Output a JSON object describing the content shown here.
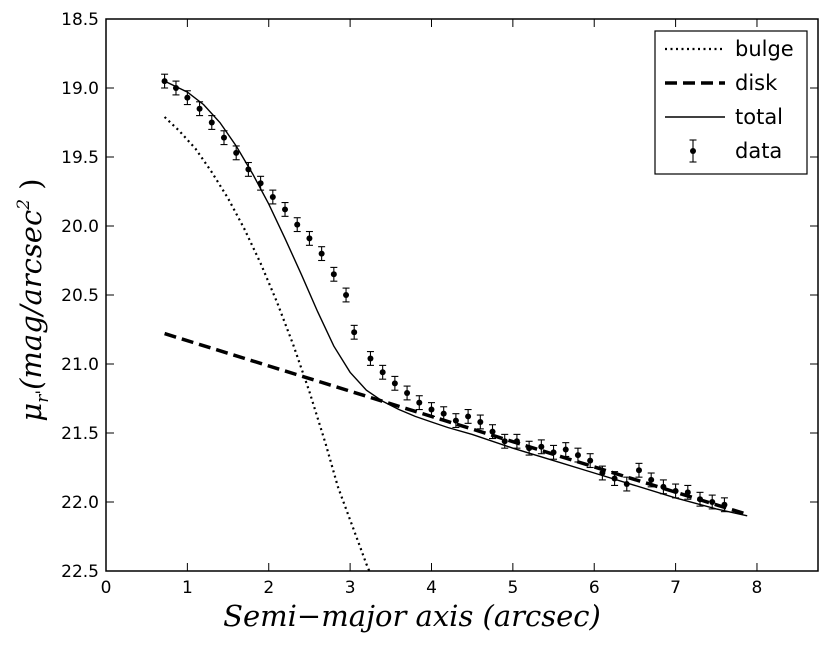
{
  "chart_data": {
    "type": "scatter",
    "title": "",
    "xlabel": "Semi−major axis (arcsec)",
    "ylabel": "μ_r'(mag/arcsec^2)",
    "ylabel_parts": {
      "main": "μ",
      "sub": "r'",
      "unit": "(mag/arcsec",
      "exp": "2",
      "close": ")"
    },
    "xlim": [
      0,
      8.75
    ],
    "ylim": [
      22.5,
      18.5
    ],
    "y_inverted": true,
    "grid": false,
    "legend_position": "top-right",
    "xticks": [
      0,
      1,
      2,
      3,
      4,
      5,
      6,
      7,
      8
    ],
    "xtick_labels": [
      "0",
      "1",
      "2",
      "3",
      "4",
      "5",
      "6",
      "7",
      "8"
    ],
    "yticks": [
      18.5,
      19.0,
      19.5,
      20.0,
      20.5,
      21.0,
      21.5,
      22.0,
      22.5
    ],
    "ytick_labels": [
      "18.5",
      "19.0",
      "19.5",
      "20.0",
      "20.5",
      "21.0",
      "21.5",
      "22.0",
      "22.5"
    ],
    "series": [
      {
        "name": "bulge",
        "kind": "line",
        "style": "dotted",
        "color": "#000000",
        "x": [
          0.72,
          0.9,
          1.1,
          1.3,
          1.5,
          1.7,
          1.9,
          2.1,
          2.3,
          2.5,
          2.7,
          2.85,
          3.0,
          3.1,
          3.2,
          3.25
        ],
        "y": [
          19.21,
          19.31,
          19.44,
          19.61,
          19.8,
          20.02,
          20.27,
          20.55,
          20.86,
          21.2,
          21.58,
          21.89,
          22.13,
          22.29,
          22.45,
          22.52
        ]
      },
      {
        "name": "disk",
        "kind": "line",
        "style": "dashed",
        "color": "#000000",
        "x": [
          0.72,
          7.88
        ],
        "y": [
          20.78,
          22.09
        ]
      },
      {
        "name": "total",
        "kind": "line",
        "style": "solid",
        "color": "#000000",
        "x": [
          0.72,
          1.0,
          1.2,
          1.4,
          1.6,
          1.8,
          2.0,
          2.2,
          2.4,
          2.6,
          2.8,
          3.0,
          3.2,
          3.4,
          3.6,
          3.8,
          4.0,
          4.2,
          4.5,
          5.0,
          5.5,
          6.0,
          6.5,
          7.0,
          7.5,
          7.88
        ],
        "y": [
          18.95,
          19.03,
          19.12,
          19.25,
          19.42,
          19.62,
          19.84,
          20.09,
          20.35,
          20.62,
          20.87,
          21.06,
          21.19,
          21.27,
          21.33,
          21.38,
          21.42,
          21.46,
          21.51,
          21.61,
          21.7,
          21.79,
          21.88,
          21.97,
          22.05,
          22.1
        ]
      },
      {
        "name": "data",
        "kind": "errorbar",
        "color": "#000000",
        "x": [
          0.72,
          0.86,
          1.0,
          1.15,
          1.3,
          1.45,
          1.6,
          1.75,
          1.9,
          2.05,
          2.2,
          2.35,
          2.5,
          2.65,
          2.8,
          2.95,
          3.05,
          3.25,
          3.4,
          3.55,
          3.7,
          3.85,
          4.0,
          4.15,
          4.3,
          4.45,
          4.6,
          4.75,
          4.9,
          5.05,
          5.2,
          5.35,
          5.5,
          5.65,
          5.8,
          5.95,
          6.1,
          6.25,
          6.4,
          6.55,
          6.7,
          6.85,
          7.0,
          7.15,
          7.3,
          7.45,
          7.6
        ],
        "y": [
          18.95,
          19.0,
          19.07,
          19.15,
          19.25,
          19.36,
          19.47,
          19.59,
          19.69,
          19.79,
          19.88,
          19.99,
          20.09,
          20.2,
          20.35,
          20.5,
          20.77,
          20.96,
          21.06,
          21.14,
          21.21,
          21.28,
          21.33,
          21.36,
          21.41,
          21.38,
          21.42,
          21.49,
          21.56,
          21.56,
          21.61,
          21.6,
          21.64,
          21.62,
          21.66,
          21.7,
          21.79,
          21.83,
          21.87,
          21.77,
          21.84,
          21.89,
          21.92,
          21.93,
          21.98,
          22.0,
          22.02
        ],
        "yerr": 0.05
      }
    ]
  }
}
